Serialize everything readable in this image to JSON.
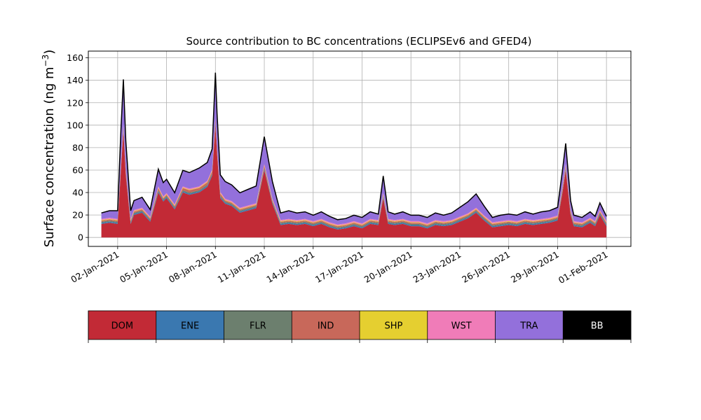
{
  "chart_data": {
    "type": "area",
    "title": "Source contribution to BC concentrations (ECLIPSEv6 and GFED4)",
    "xlabel": "",
    "ylabel": "Surface concentration (ng m",
    "ylabel_sup": "−3",
    "ylabel_close": ")",
    "stacked": true,
    "grid": true,
    "x_start": "2021-01-01",
    "x_end": "2021-02-01",
    "xlim_days": [
      -0.8,
      32.5
    ],
    "ylim": [
      -8,
      166
    ],
    "x_ticks": [
      {
        "day": 1,
        "label": "02-Jan-2021"
      },
      {
        "day": 4,
        "label": "05-Jan-2021"
      },
      {
        "day": 7,
        "label": "08-Jan-2021"
      },
      {
        "day": 10,
        "label": "11-Jan-2021"
      },
      {
        "day": 13,
        "label": "14-Jan-2021"
      },
      {
        "day": 16,
        "label": "17-Jan-2021"
      },
      {
        "day": 19,
        "label": "20-Jan-2021"
      },
      {
        "day": 22,
        "label": "23-Jan-2021"
      },
      {
        "day": 25,
        "label": "26-Jan-2021"
      },
      {
        "day": 28,
        "label": "29-Jan-2021"
      },
      {
        "day": 31,
        "label": "01-Feb-2021"
      }
    ],
    "y_ticks": [
      0,
      20,
      40,
      60,
      80,
      100,
      120,
      140,
      160
    ],
    "x_days": [
      0,
      0.5,
      1,
      1.2,
      1.35,
      1.5,
      1.8,
      2,
      2.5,
      3,
      3.5,
      3.8,
      4,
      4.5,
      5,
      5.4,
      6,
      6.5,
      6.8,
      7,
      7.1,
      7.3,
      7.6,
      8,
      8.5,
      9,
      9.5,
      10,
      10.5,
      11,
      11.5,
      12,
      12.5,
      13,
      13.5,
      14,
      14.5,
      15,
      15.5,
      16,
      16.5,
      17,
      17.3,
      17.6,
      18,
      18.5,
      19,
      19.5,
      20,
      20.5,
      21,
      21.5,
      22,
      22.5,
      23,
      23.5,
      24,
      24.5,
      25,
      25.5,
      26,
      26.5,
      27,
      27.5,
      28,
      28.3,
      28.5,
      28.8,
      29,
      29.5,
      30,
      30.3,
      30.6,
      31
    ],
    "series": [
      {
        "name": "DOM",
        "color": "#c22a36",
        "values": [
          12,
          13,
          12,
          60,
          95,
          55,
          12,
          20,
          22,
          14,
          40,
          32,
          35,
          25,
          40,
          38,
          40,
          45,
          55,
          100,
          75,
          35,
          30,
          28,
          22,
          24,
          26,
          60,
          30,
          11,
          12,
          11,
          12,
          10,
          12,
          9,
          7,
          8,
          10,
          8,
          12,
          11,
          35,
          12,
          11,
          12,
          10,
          10,
          8,
          11,
          10,
          11,
          14,
          17,
          22,
          15,
          9,
          10,
          11,
          10,
          12,
          11,
          12,
          13,
          15,
          40,
          60,
          20,
          10,
          9,
          13,
          10,
          20,
          10
        ]
      },
      {
        "name": "ENE",
        "color": "#3a78b0",
        "values": [
          1,
          1,
          1,
          1,
          1,
          1,
          1,
          1,
          1,
          1,
          1,
          1,
          1,
          1,
          1,
          1,
          1,
          1,
          1,
          1,
          1,
          1,
          1,
          1,
          1,
          1,
          1,
          1,
          1,
          1,
          1,
          1,
          1,
          1,
          1,
          1,
          1,
          1,
          1,
          1,
          1,
          1,
          1,
          1,
          1,
          1,
          1,
          1,
          1,
          1,
          1,
          1,
          1,
          1,
          1,
          1,
          1,
          1,
          1,
          1,
          1,
          1,
          1,
          1,
          1,
          1,
          1,
          1,
          1,
          1,
          1,
          1,
          1,
          1
        ]
      },
      {
        "name": "FLR",
        "color": "#6c7f6e",
        "values": [
          1,
          1,
          1,
          1,
          1,
          1,
          1,
          1,
          1,
          1,
          1,
          1,
          1,
          1,
          1,
          1,
          1,
          1,
          1,
          1,
          1,
          1,
          1,
          1,
          1,
          1,
          1,
          1,
          1,
          1,
          1,
          1,
          1,
          1,
          1,
          1,
          1,
          1,
          1,
          1,
          1,
          1,
          1,
          1,
          1,
          1,
          1,
          1,
          1,
          1,
          1,
          1,
          1,
          1,
          1,
          1,
          1,
          1,
          1,
          1,
          1,
          1,
          1,
          1,
          1,
          1,
          1,
          1,
          1,
          1,
          1,
          1,
          1,
          1
        ]
      },
      {
        "name": "IND",
        "color": "#c8685a",
        "values": [
          1,
          1,
          1,
          2,
          2,
          2,
          1,
          1,
          1,
          1,
          2,
          1,
          1,
          1,
          2,
          2,
          2,
          2,
          2,
          3,
          2,
          2,
          1,
          1,
          1,
          1,
          1,
          2,
          1,
          1,
          1,
          1,
          1,
          1,
          1,
          1,
          1,
          1,
          1,
          1,
          1,
          1,
          1,
          1,
          1,
          1,
          1,
          1,
          1,
          1,
          1,
          1,
          1,
          1,
          1,
          1,
          1,
          1,
          1,
          1,
          1,
          1,
          1,
          1,
          1,
          2,
          2,
          1,
          1,
          1,
          1,
          1,
          1,
          1
        ]
      },
      {
        "name": "SHP",
        "color": "#e5cf30",
        "values": [
          0.5,
          0.5,
          0.5,
          0.5,
          0.5,
          0.5,
          0.5,
          0.5,
          0.5,
          0.5,
          0.5,
          0.5,
          0.5,
          0.5,
          0.5,
          0.5,
          0.5,
          0.5,
          0.5,
          0.5,
          0.5,
          0.5,
          0.5,
          0.5,
          0.5,
          0.5,
          0.5,
          0.5,
          0.5,
          0.5,
          0.5,
          0.5,
          0.5,
          0.5,
          0.5,
          0.5,
          0.5,
          0.5,
          0.5,
          0.5,
          0.5,
          0.5,
          0.5,
          0.5,
          0.5,
          0.5,
          0.5,
          0.5,
          0.5,
          0.5,
          0.5,
          0.5,
          0.5,
          0.5,
          0.5,
          0.5,
          0.5,
          0.5,
          0.5,
          0.5,
          0.5,
          0.5,
          0.5,
          0.5,
          0.5,
          0.5,
          0.5,
          0.5,
          0.5,
          0.5,
          0.5,
          0.5,
          0.5,
          0.5
        ]
      },
      {
        "name": "WST",
        "color": "#f07cb8",
        "values": [
          1,
          1,
          1,
          1,
          1,
          1,
          1,
          1,
          1,
          1,
          1,
          1,
          1,
          1,
          1,
          1,
          1,
          1,
          1,
          1,
          1,
          1,
          1,
          1,
          1,
          1,
          1,
          1,
          1,
          1,
          1,
          1,
          1,
          1,
          1,
          1,
          1,
          1,
          1,
          1,
          1,
          1,
          1,
          1,
          1,
          1,
          1,
          1,
          1,
          1,
          1,
          1,
          1,
          1,
          1,
          1,
          1,
          1,
          1,
          1,
          1,
          1,
          1,
          1,
          1,
          1,
          1,
          1,
          1,
          1,
          1,
          1,
          1,
          1
        ]
      },
      {
        "name": "TRA",
        "color": "#9370db",
        "values": [
          5,
          6,
          7,
          30,
          40,
          25,
          7,
          8,
          9,
          6,
          15,
          12,
          12,
          10,
          14,
          14,
          16,
          16,
          18,
          40,
          30,
          15,
          15,
          14,
          13,
          14,
          15,
          24,
          15,
          6,
          7,
          6,
          6,
          5,
          6,
          5,
          4,
          4,
          5,
          5,
          6,
          5,
          15,
          6,
          5,
          6,
          5,
          5,
          5,
          6,
          5,
          6,
          8,
          10,
          12,
          8,
          4,
          5,
          5,
          5,
          6,
          5,
          6,
          6,
          7,
          14,
          18,
          8,
          5,
          4,
          5,
          4,
          6,
          4
        ]
      },
      {
        "name": "BB",
        "color": "#000000",
        "values": [
          0.3,
          0.3,
          0.3,
          0.3,
          0.3,
          0.3,
          0.3,
          0.3,
          0.3,
          0.3,
          0.3,
          0.3,
          0.3,
          0.3,
          0.3,
          0.3,
          0.3,
          0.3,
          0.3,
          0.3,
          0.3,
          0.3,
          0.3,
          0.3,
          0.3,
          0.3,
          0.3,
          0.3,
          0.3,
          0.3,
          0.3,
          0.3,
          0.3,
          0.3,
          0.3,
          0.3,
          0.3,
          0.3,
          0.3,
          0.3,
          0.3,
          0.3,
          0.3,
          0.3,
          0.3,
          0.3,
          0.3,
          0.3,
          0.3,
          0.3,
          0.3,
          0.3,
          0.3,
          0.3,
          0.3,
          0.3,
          0.3,
          0.3,
          0.3,
          0.3,
          0.3,
          0.3,
          0.3,
          0.3,
          0.3,
          0.3,
          0.3,
          0.3,
          0.3,
          0.3,
          0.3,
          0.3,
          0.3,
          0.3
        ]
      }
    ],
    "legend": [
      {
        "label": "DOM",
        "color": "#c22a36",
        "text_color": "#000000"
      },
      {
        "label": "ENE",
        "color": "#3a78b0",
        "text_color": "#000000"
      },
      {
        "label": "FLR",
        "color": "#6c7f6e",
        "text_color": "#000000"
      },
      {
        "label": "IND",
        "color": "#c8685a",
        "text_color": "#000000"
      },
      {
        "label": "SHP",
        "color": "#e5cf30",
        "text_color": "#000000"
      },
      {
        "label": "WST",
        "color": "#f07cb8",
        "text_color": "#000000"
      },
      {
        "label": "TRA",
        "color": "#9370db",
        "text_color": "#000000"
      },
      {
        "label": "BB",
        "color": "#000000",
        "text_color": "#ffffff"
      }
    ],
    "legend_placement": "bottom colorbar"
  }
}
